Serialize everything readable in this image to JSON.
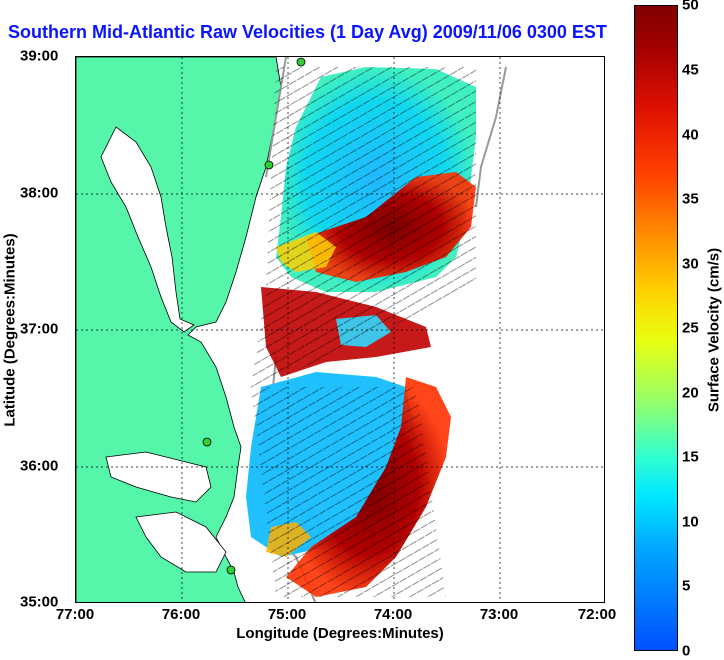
{
  "title": "Southern Mid-Atlantic Raw Velocities (1 Day Avg) 2009/11/06 0300 EST",
  "x_axis": {
    "label": "Longitude (Degrees:Minutes)",
    "ticks": [
      "77:00",
      "76:00",
      "75:00",
      "74:00",
      "73:00",
      "72:00"
    ]
  },
  "y_axis": {
    "label": "Latitude (Degrees:Minutes)",
    "ticks": [
      "39:00",
      "38:00",
      "37:00",
      "36:00",
      "35:00"
    ]
  },
  "colorbar": {
    "label": "Surface Velocity (cm/s)",
    "ticks": [
      "50",
      "45",
      "40",
      "35",
      "30",
      "25",
      "20",
      "15",
      "10",
      "5",
      "0"
    ],
    "range": [
      0,
      50
    ]
  },
  "colors": {
    "land": "#55f5aa",
    "coast_line": "#000000",
    "title": "#0a14ff",
    "bathymetry": "#999999",
    "station": "#33cc33"
  }
}
